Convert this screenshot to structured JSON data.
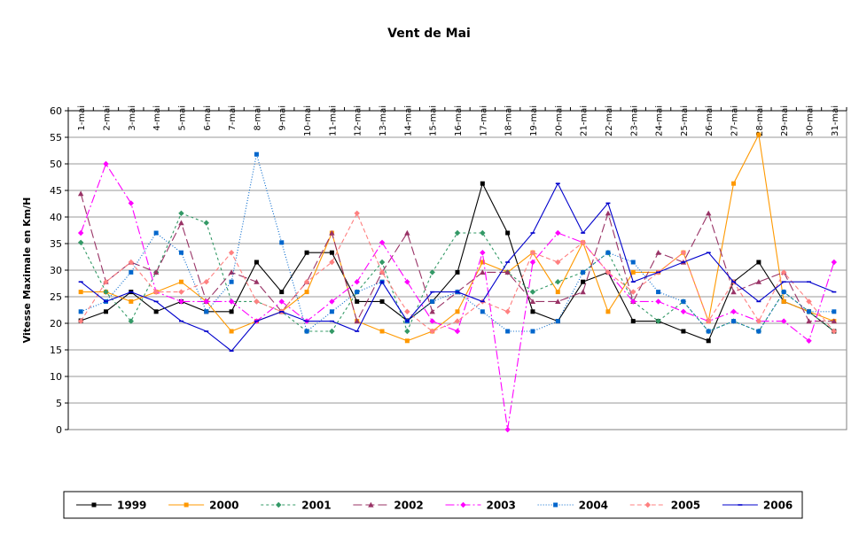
{
  "chart_data": {
    "type": "line",
    "title": "Vent de Mai",
    "ylabel": "Vitesse Maximale en Km/H",
    "xlabel": "",
    "ylim": [
      0,
      60
    ],
    "yticks": [
      0,
      5,
      10,
      15,
      20,
      25,
      30,
      35,
      40,
      45,
      50,
      55,
      60
    ],
    "grid": true,
    "legend_position": "bottom",
    "categories": [
      "1-mai",
      "2-mai",
      "3-mai",
      "4-mai",
      "5-mai",
      "6-mai",
      "7-mai",
      "8-mai",
      "9-mai",
      "10-mai",
      "11-mai",
      "12-mai",
      "13-mai",
      "14-mai",
      "15-mai",
      "16-mai",
      "17-mai",
      "18-mai",
      "19-mai",
      "20-mai",
      "21-mai",
      "22-mai",
      "23-mai",
      "24-mai",
      "25-mai",
      "26-mai",
      "27-mai",
      "28-mai",
      "29-mai",
      "30-mai",
      "31-mai"
    ],
    "series": [
      {
        "name": "1999",
        "color": "#000000",
        "dash": "solid",
        "marker": "square",
        "values": [
          20.5,
          22.2,
          25.9,
          22.2,
          24.1,
          22.2,
          22.2,
          31.5,
          25.9,
          33.3,
          33.3,
          24.1,
          24.1,
          20.5,
          24.1,
          29.6,
          46.3,
          37.0,
          22.2,
          20.4,
          27.8,
          29.6,
          20.4,
          20.4,
          18.5,
          16.7,
          27.8,
          31.5,
          24.1,
          22.2,
          18.5
        ]
      },
      {
        "name": "2000",
        "color": "#FF9900",
        "dash": "solid",
        "marker": "square",
        "values": [
          25.9,
          25.9,
          24.1,
          25.9,
          27.8,
          24.1,
          18.5,
          20.4,
          22.2,
          25.9,
          37.0,
          20.4,
          18.5,
          16.7,
          18.5,
          22.2,
          31.5,
          29.6,
          33.3,
          25.9,
          35.2,
          22.2,
          29.6,
          29.6,
          33.3,
          20.4,
          46.3,
          55.5,
          24.1,
          22.2,
          20.4
        ]
      },
      {
        "name": "2001",
        "color": "#339966",
        "dash": "3,3",
        "marker": "diamond",
        "values": [
          35.2,
          25.9,
          20.4,
          29.6,
          40.7,
          38.9,
          24.1,
          24.1,
          22.2,
          18.5,
          18.5,
          25.9,
          31.5,
          18.5,
          29.6,
          37.0,
          37.0,
          29.6,
          25.9,
          27.8,
          29.6,
          33.3,
          24.1,
          20.4,
          24.1,
          18.5,
          20.4,
          18.5,
          25.9,
          22.2,
          18.5
        ]
      },
      {
        "name": "2002",
        "color": "#993366",
        "dash": "10,4",
        "marker": "triangle",
        "values": [
          44.4,
          27.8,
          31.5,
          29.6,
          38.9,
          24.1,
          29.6,
          27.8,
          22.2,
          27.8,
          37.0,
          20.4,
          29.6,
          37.0,
          22.2,
          25.9,
          29.6,
          29.6,
          24.1,
          24.1,
          25.9,
          40.7,
          24.1,
          33.3,
          31.5,
          40.7,
          25.9,
          27.8,
          29.6,
          20.4,
          20.4
        ]
      },
      {
        "name": "2003",
        "color": "#FF00FF",
        "dash": "10,3,2,3",
        "marker": "diamond",
        "values": [
          37.0,
          50.0,
          42.6,
          25.9,
          24.1,
          24.1,
          24.1,
          20.4,
          24.1,
          20.4,
          24.1,
          27.8,
          35.2,
          27.8,
          20.4,
          18.5,
          33.3,
          0.0,
          31.5,
          37.0,
          35.2,
          29.6,
          24.1,
          24.1,
          22.2,
          20.4,
          22.2,
          20.4,
          20.4,
          16.7,
          31.5
        ]
      },
      {
        "name": "2004",
        "color": "#0066CC",
        "dash": "1,2",
        "marker": "square",
        "values": [
          22.2,
          24.1,
          29.6,
          37.0,
          33.3,
          22.2,
          27.8,
          51.8,
          35.2,
          18.5,
          22.2,
          25.9,
          27.8,
          20.4,
          24.1,
          25.9,
          22.2,
          18.5,
          18.5,
          20.4,
          29.6,
          33.3,
          31.5,
          25.9,
          24.1,
          18.5,
          20.4,
          18.5,
          25.9,
          22.2,
          22.2
        ]
      },
      {
        "name": "2005",
        "color": "#FF8080",
        "dash": "5,3",
        "marker": "diamond",
        "values": [
          20.4,
          27.8,
          31.5,
          25.9,
          25.9,
          27.8,
          33.3,
          24.1,
          22.2,
          27.8,
          31.5,
          40.7,
          29.6,
          22.2,
          18.5,
          20.4,
          24.1,
          22.2,
          33.3,
          31.5,
          35.2,
          29.6,
          25.9,
          29.6,
          33.3,
          20.4,
          27.8,
          20.4,
          29.6,
          24.1,
          18.5
        ]
      },
      {
        "name": "2006",
        "color": "#0000CC",
        "dash": "solid",
        "marker": "dash",
        "values": [
          27.8,
          24.1,
          25.9,
          24.1,
          20.4,
          18.5,
          14.8,
          20.4,
          22.2,
          20.4,
          20.4,
          18.5,
          27.8,
          20.4,
          25.9,
          25.9,
          24.1,
          31.5,
          37.0,
          46.3,
          37.0,
          42.6,
          27.8,
          29.6,
          31.5,
          33.3,
          27.8,
          24.1,
          27.8,
          27.8,
          25.9
        ]
      }
    ]
  }
}
